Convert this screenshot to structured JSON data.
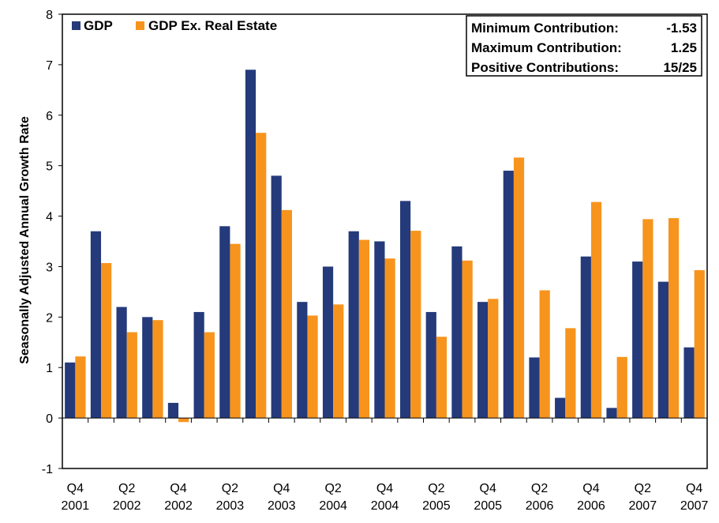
{
  "chart_data": {
    "type": "bar",
    "ylabel": "Seasonally Adjusted Annual Growth Rate",
    "xlabel": "",
    "ylim": [
      -1,
      8
    ],
    "yticks": [
      -1,
      0,
      1,
      2,
      3,
      4,
      5,
      6,
      7,
      8
    ],
    "grid": false,
    "legend_position": "top-left",
    "categories": [
      "Q4 2001",
      "Q1 2002",
      "Q2 2002",
      "Q3 2002",
      "Q4 2002",
      "Q1 2003",
      "Q2 2003",
      "Q3 2003",
      "Q4 2003",
      "Q1 2004",
      "Q2 2004",
      "Q3 2004",
      "Q4 2004",
      "Q1 2005",
      "Q2 2005",
      "Q3 2005",
      "Q4 2005",
      "Q1 2006",
      "Q2 2006",
      "Q3 2006",
      "Q4 2006",
      "Q1 2007",
      "Q2 2007",
      "Q3 2007",
      "Q4 2007"
    ],
    "tick_labels": [
      {
        "index": 0,
        "line1": "Q4",
        "line2": "2001"
      },
      {
        "index": 2,
        "line1": "Q2",
        "line2": "2002"
      },
      {
        "index": 4,
        "line1": "Q4",
        "line2": "2002"
      },
      {
        "index": 6,
        "line1": "Q2",
        "line2": "2003"
      },
      {
        "index": 8,
        "line1": "Q4",
        "line2": "2003"
      },
      {
        "index": 10,
        "line1": "Q2",
        "line2": "2004"
      },
      {
        "index": 12,
        "line1": "Q4",
        "line2": "2004"
      },
      {
        "index": 14,
        "line1": "Q2",
        "line2": "2005"
      },
      {
        "index": 16,
        "line1": "Q4",
        "line2": "2005"
      },
      {
        "index": 18,
        "line1": "Q2",
        "line2": "2006"
      },
      {
        "index": 20,
        "line1": "Q4",
        "line2": "2006"
      },
      {
        "index": 22,
        "line1": "Q2",
        "line2": "2007"
      },
      {
        "index": 24,
        "line1": "Q4",
        "line2": "2007"
      }
    ],
    "series": [
      {
        "name": "GDP",
        "color": "#243a7a",
        "values": [
          1.1,
          3.7,
          2.2,
          2.0,
          0.3,
          2.1,
          3.8,
          6.9,
          4.8,
          2.3,
          3.0,
          3.7,
          3.5,
          4.3,
          2.1,
          3.4,
          2.3,
          4.9,
          1.2,
          0.4,
          3.2,
          0.2,
          3.1,
          2.7,
          1.4
        ]
      },
      {
        "name": "GDP Ex. Real Estate",
        "color": "#f7941d",
        "values": [
          1.22,
          3.07,
          1.7,
          1.94,
          -0.08,
          1.7,
          3.45,
          5.65,
          4.12,
          2.03,
          2.25,
          3.53,
          3.16,
          3.71,
          1.61,
          3.12,
          2.36,
          5.16,
          2.53,
          1.78,
          4.28,
          1.21,
          3.94,
          3.96,
          2.93
        ]
      }
    ],
    "stats_box": [
      {
        "label": "Minimum Contribution:",
        "value": "-1.53"
      },
      {
        "label": "Maximum Contribution:",
        "value": "1.25"
      },
      {
        "label": "Positive Contributions:",
        "value": "15/25"
      }
    ]
  }
}
